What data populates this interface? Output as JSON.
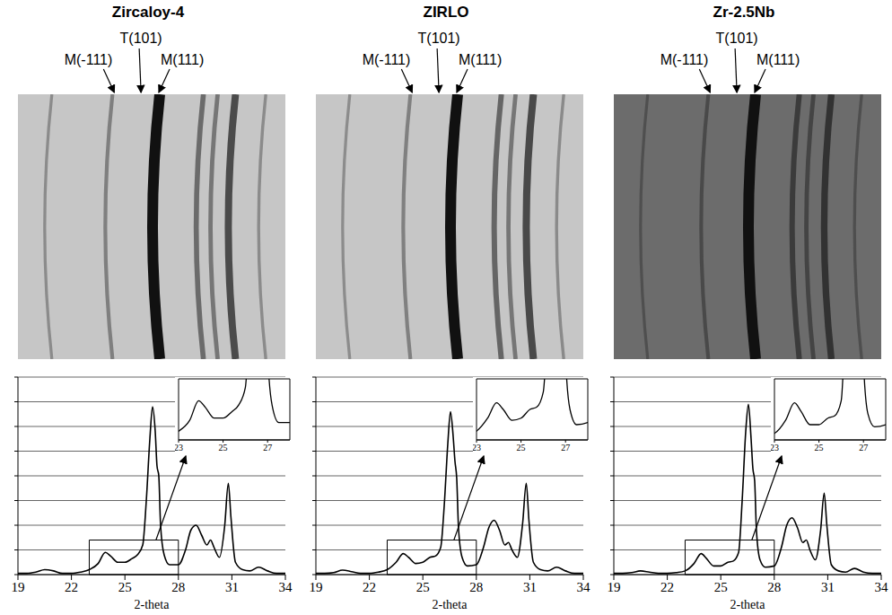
{
  "chart_data": [
    {
      "type": "line",
      "title": "Zircaloy-4",
      "x_label": "2-theta",
      "xlim": [
        19,
        34
      ],
      "xticks": [
        19,
        22,
        25,
        28,
        31,
        34
      ],
      "ylim": [
        0,
        8
      ],
      "yticks": [
        0,
        1,
        2,
        3,
        4,
        5,
        6,
        7,
        8
      ],
      "grid": true,
      "tick_labels": "x",
      "color": "#000000",
      "x": [
        19,
        19.5,
        20,
        20.5,
        21,
        21.5,
        22,
        22.5,
        23,
        23.5,
        23.9,
        24.2,
        24.6,
        25,
        25.4,
        25.7,
        26,
        26.2,
        26.4,
        26.55,
        26.7,
        26.8,
        26.9,
        27,
        27.2,
        27.5,
        28,
        28.4,
        28.7,
        29,
        29.3,
        29.6,
        29.8,
        30,
        30.3,
        30.6,
        30.8,
        30.95,
        31.2,
        31.6,
        32,
        32.5,
        33,
        33.5,
        34
      ],
      "values": [
        0.05,
        0.05,
        0.1,
        0.2,
        0.15,
        0.05,
        0.05,
        0.1,
        0.2,
        0.45,
        0.9,
        0.75,
        0.5,
        0.5,
        0.65,
        0.8,
        1.2,
        3.0,
        5.5,
        6.8,
        5.8,
        4.4,
        4.0,
        2.0,
        0.8,
        0.4,
        0.4,
        1.0,
        1.8,
        2.0,
        1.6,
        1.2,
        1.4,
        1.1,
        0.7,
        2.0,
        3.7,
        2.3,
        0.5,
        0.2,
        0.15,
        0.3,
        0.15,
        0.05,
        0.05
      ],
      "annotations": [
        {
          "text": "M(-111)",
          "x": 24.0
        },
        {
          "text": "T(101)",
          "x": 25.5
        },
        {
          "text": "M(111)",
          "x": 26.5
        }
      ],
      "inset": {
        "type": "line",
        "xlim": [
          23,
          28
        ],
        "xticks": [
          23,
          25,
          27
        ],
        "ylim": [
          0,
          1.4
        ],
        "tick_labels": "x"
      }
    },
    {
      "type": "line",
      "title": "ZIRLO",
      "x_label": "2-theta",
      "xlim": [
        19,
        34
      ],
      "xticks": [
        19,
        22,
        25,
        28,
        31,
        34
      ],
      "ylim": [
        0,
        8
      ],
      "yticks": [
        0,
        1,
        2,
        3,
        4,
        5,
        6,
        7,
        8
      ],
      "grid": true,
      "tick_labels": "x",
      "color": "#000000",
      "x": [
        19,
        19.5,
        20,
        20.5,
        21,
        21.5,
        22,
        22.5,
        23,
        23.5,
        23.9,
        24.2,
        24.6,
        25,
        25.4,
        25.7,
        26,
        26.2,
        26.4,
        26.55,
        26.7,
        26.8,
        26.9,
        27,
        27.2,
        27.5,
        28,
        28.4,
        28.7,
        29,
        29.3,
        29.6,
        29.8,
        30,
        30.3,
        30.6,
        30.8,
        30.95,
        31.2,
        31.6,
        32,
        32.5,
        33,
        33.5,
        34
      ],
      "values": [
        0.05,
        0.05,
        0.08,
        0.18,
        0.12,
        0.05,
        0.05,
        0.1,
        0.2,
        0.5,
        0.85,
        0.7,
        0.45,
        0.5,
        0.7,
        0.75,
        1.1,
        2.8,
        5.3,
        6.6,
        5.6,
        4.6,
        3.9,
        1.9,
        0.7,
        0.35,
        0.4,
        1.1,
        1.9,
        2.2,
        1.8,
        1.2,
        1.3,
        1.0,
        0.7,
        2.1,
        3.7,
        2.2,
        0.5,
        0.2,
        0.15,
        0.3,
        0.15,
        0.05,
        0.05
      ],
      "annotations": [
        {
          "text": "M(-111)",
          "x": 24.0
        },
        {
          "text": "T(101)",
          "x": 25.5
        },
        {
          "text": "M(111)",
          "x": 26.5
        }
      ],
      "inset": {
        "type": "line",
        "xlim": [
          23,
          28
        ],
        "xticks": [
          23,
          25,
          27
        ],
        "ylim": [
          0,
          1.4
        ],
        "tick_labels": "x"
      }
    },
    {
      "type": "line",
      "title": "Zr-2.5Nb",
      "x_label": "2-theta",
      "xlim": [
        19,
        34
      ],
      "xticks": [
        19,
        22,
        25,
        28,
        31,
        34
      ],
      "ylim": [
        0,
        8
      ],
      "yticks": [
        0,
        1,
        2,
        3,
        4,
        5,
        6,
        7,
        8
      ],
      "grid": true,
      "tick_labels": "x",
      "color": "#000000",
      "x": [
        19,
        19.5,
        20,
        20.5,
        21,
        21.5,
        22,
        22.5,
        23,
        23.5,
        23.9,
        24.2,
        24.6,
        25,
        25.4,
        25.7,
        26,
        26.2,
        26.4,
        26.55,
        26.7,
        26.8,
        26.9,
        27,
        27.2,
        27.5,
        28,
        28.4,
        28.7,
        29,
        29.3,
        29.6,
        29.8,
        30,
        30.3,
        30.6,
        30.8,
        30.95,
        31.2,
        31.6,
        32,
        32.5,
        33,
        33.5,
        34
      ],
      "values": [
        0.05,
        0.05,
        0.08,
        0.15,
        0.1,
        0.05,
        0.05,
        0.08,
        0.15,
        0.45,
        0.85,
        0.65,
        0.35,
        0.35,
        0.5,
        0.55,
        0.9,
        3.0,
        5.8,
        6.9,
        5.5,
        4.3,
        3.8,
        1.8,
        0.6,
        0.3,
        0.35,
        1.1,
        2.0,
        2.3,
        1.9,
        1.3,
        1.4,
        1.0,
        0.6,
        1.8,
        3.3,
        2.0,
        0.4,
        0.15,
        0.1,
        0.25,
        0.1,
        0.05,
        0.05
      ],
      "annotations": [
        {
          "text": "M(-111)",
          "x": 24.0
        },
        {
          "text": "T(101)",
          "x": 25.5
        },
        {
          "text": "M(111)",
          "x": 26.5
        }
      ],
      "inset": {
        "type": "line",
        "xlim": [
          23,
          28
        ],
        "xticks": [
          23,
          25,
          27
        ],
        "ylim": [
          0,
          1.4
        ],
        "tick_labels": "x"
      }
    }
  ]
}
